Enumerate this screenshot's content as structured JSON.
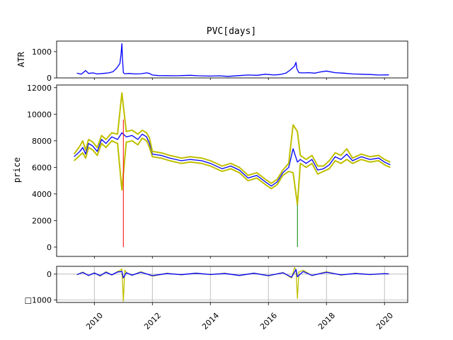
{
  "chart_data": [
    {
      "type": "line",
      "title": "PVC[days]",
      "ylabel": "ATR",
      "ylim": [
        0,
        1400
      ],
      "xlim": [
        2008.7,
        2020.8
      ],
      "yticks": [
        0,
        1000
      ],
      "xticks": [],
      "grid": false,
      "series": [
        {
          "color": "#0000ff",
          "x": [
            2009.4,
            2009.55,
            2009.7,
            2009.8,
            2009.95,
            2010.1,
            2010.3,
            2010.5,
            2010.65,
            2010.75,
            2010.82,
            2010.88,
            2010.92,
            2010.95,
            2010.97,
            2011.0,
            2011.05,
            2011.2,
            2011.4,
            2011.6,
            2011.8,
            2011.9,
            2012.0,
            2012.2,
            2012.5,
            2012.8,
            2013.0,
            2013.3,
            2013.6,
            2014.0,
            2014.3,
            2014.6,
            2015.0,
            2015.3,
            2015.6,
            2015.9,
            2016.2,
            2016.4,
            2016.6,
            2016.75,
            2016.85,
            2016.9,
            2016.95,
            2016.98,
            2017.05,
            2017.2,
            2017.4,
            2017.6,
            2017.8,
            2018.0,
            2018.3,
            2018.6,
            2018.9,
            2019.2,
            2019.5,
            2019.8,
            2020.15
          ],
          "y": [
            180,
            140,
            280,
            170,
            190,
            150,
            170,
            190,
            240,
            350,
            450,
            550,
            900,
            1300,
            700,
            200,
            160,
            170,
            150,
            160,
            190,
            170,
            110,
            90,
            85,
            80,
            90,
            100,
            80,
            70,
            80,
            60,
            90,
            110,
            100,
            140,
            110,
            130,
            180,
            300,
            400,
            450,
            590,
            350,
            200,
            190,
            200,
            180,
            230,
            260,
            200,
            180,
            150,
            140,
            130,
            110,
            115
          ]
        }
      ]
    },
    {
      "type": "line",
      "title": "",
      "ylabel": "price",
      "ylim": [
        -700,
        12200
      ],
      "xlim": [
        2008.7,
        2020.8
      ],
      "yticks": [
        0,
        2000,
        4000,
        6000,
        8000,
        10000,
        12000
      ],
      "xticks": [],
      "grid": false,
      "series": [
        {
          "name": "",
          "role": "middle",
          "color": "#0000ff",
          "x": [
            2009.3,
            2009.5,
            2009.6,
            2009.7,
            2009.8,
            2009.95,
            2010.1,
            2010.25,
            2010.4,
            2010.6,
            2010.8,
            2010.95,
            2011.1,
            2011.3,
            2011.5,
            2011.65,
            2011.8,
            2011.9,
            2012.0,
            2012.3,
            2012.6,
            2013.0,
            2013.3,
            2013.7,
            2014.0,
            2014.4,
            2014.7,
            2015.0,
            2015.3,
            2015.6,
            2015.9,
            2016.1,
            2016.3,
            2016.5,
            2016.7,
            2016.85,
            2017.0,
            2017.1,
            2017.3,
            2017.5,
            2017.7,
            2017.9,
            2018.1,
            2018.3,
            2018.5,
            2018.7,
            2018.9,
            2019.2,
            2019.5,
            2019.8,
            2020.0,
            2020.2
          ],
          "y": [
            6800,
            7200,
            7500,
            7000,
            7800,
            7600,
            7200,
            8100,
            7800,
            8300,
            8100,
            8600,
            8300,
            8400,
            8100,
            8500,
            8300,
            7800,
            7000,
            6900,
            6700,
            6500,
            6600,
            6500,
            6300,
            5900,
            6100,
            5800,
            5200,
            5400,
            4900,
            4600,
            4900,
            5600,
            6000,
            7400,
            6400,
            6600,
            6300,
            6600,
            5800,
            5900,
            6200,
            6800,
            6600,
            7000,
            6500,
            6800,
            6600,
            6700,
            6400,
            6200
          ]
        },
        {
          "name": "",
          "role": "upper",
          "color": "#bfbf00",
          "x": [
            2009.3,
            2009.5,
            2009.6,
            2009.7,
            2009.8,
            2009.95,
            2010.1,
            2010.25,
            2010.4,
            2010.6,
            2010.8,
            2010.95,
            2011.1,
            2011.3,
            2011.5,
            2011.65,
            2011.8,
            2011.9,
            2012.0,
            2012.3,
            2012.6,
            2013.0,
            2013.3,
            2013.7,
            2014.0,
            2014.4,
            2014.7,
            2015.0,
            2015.3,
            2015.6,
            2015.9,
            2016.1,
            2016.3,
            2016.5,
            2016.7,
            2016.85,
            2017.0,
            2017.1,
            2017.3,
            2017.5,
            2017.7,
            2017.9,
            2018.1,
            2018.3,
            2018.5,
            2018.7,
            2018.9,
            2019.2,
            2019.5,
            2019.8,
            2020.0,
            2020.2
          ],
          "y": [
            7000,
            7600,
            8000,
            7300,
            8100,
            7900,
            7500,
            8400,
            8100,
            8600,
            8500,
            11600,
            8700,
            8800,
            8500,
            8800,
            8600,
            8200,
            7200,
            7100,
            6900,
            6700,
            6800,
            6700,
            6500,
            6100,
            6300,
            6000,
            5400,
            5600,
            5100,
            4800,
            5100,
            5800,
            6300,
            9200,
            8700,
            6900,
            6600,
            6900,
            6100,
            6100,
            6500,
            7100,
            6900,
            7400,
            6700,
            7000,
            6800,
            6900,
            6600,
            6400
          ]
        },
        {
          "name": "",
          "role": "lower",
          "color": "#bfbf00",
          "x": [
            2009.3,
            2009.5,
            2009.6,
            2009.7,
            2009.8,
            2009.95,
            2010.1,
            2010.25,
            2010.4,
            2010.6,
            2010.8,
            2010.95,
            2011.1,
            2011.3,
            2011.5,
            2011.65,
            2011.8,
            2011.9,
            2012.0,
            2012.3,
            2012.6,
            2013.0,
            2013.3,
            2013.7,
            2014.0,
            2014.4,
            2014.7,
            2015.0,
            2015.3,
            2015.6,
            2015.9,
            2016.1,
            2016.3,
            2016.5,
            2016.7,
            2016.85,
            2017.0,
            2017.1,
            2017.3,
            2017.5,
            2017.7,
            2017.9,
            2018.1,
            2018.3,
            2018.5,
            2018.7,
            2018.9,
            2019.2,
            2019.5,
            2019.8,
            2020.0,
            2020.2
          ],
          "y": [
            6500,
            6900,
            7100,
            6700,
            7500,
            7300,
            6900,
            7800,
            7500,
            8000,
            7800,
            4300,
            7900,
            8000,
            7700,
            8200,
            8000,
            7500,
            6800,
            6700,
            6500,
            6300,
            6400,
            6300,
            6100,
            5700,
            5900,
            5600,
            5000,
            5200,
            4700,
            4400,
            4700,
            5400,
            5700,
            5600,
            3200,
            6300,
            6000,
            6300,
            5500,
            5700,
            5900,
            6500,
            6300,
            6600,
            6300,
            6600,
            6400,
            6500,
            6200,
            6000
          ]
        }
      ],
      "spikes": [
        {
          "x": 2011.0,
          "y_from": 9600,
          "y_to": 0,
          "color": "#ff0000"
        },
        {
          "x": 2017.0,
          "y_from": 3200,
          "y_to": 0,
          "color": "#008000"
        }
      ]
    },
    {
      "type": "line",
      "title": "",
      "ylabel": "",
      "ylim": [
        -1100,
        300
      ],
      "xlim": [
        2008.7,
        2020.8
      ],
      "yticks": [
        0,
        -1000
      ],
      "ytick_labels": [
        "0",
        "□1000"
      ],
      "xticks": [
        2010,
        2012,
        2014,
        2016,
        2018,
        2020
      ],
      "xtick_labels": [
        "2010",
        "2012",
        "2014",
        "2016",
        "2018",
        "2020"
      ],
      "grid": true,
      "series": [
        {
          "color": "#bfbf00",
          "x": [
            2009.4,
            2009.6,
            2009.8,
            2010.0,
            2010.2,
            2010.4,
            2010.6,
            2010.8,
            2010.9,
            2010.95,
            2011.0,
            2011.05,
            2011.1,
            2011.3,
            2011.6,
            2012.0,
            2012.5,
            2013.0,
            2013.5,
            2014.0,
            2014.5,
            2015.0,
            2015.5,
            2016.0,
            2016.5,
            2016.8,
            2016.9,
            2016.95,
            2017.0,
            2017.05,
            2017.2,
            2017.5,
            2018.0,
            2018.5,
            2019.0,
            2019.5,
            2020.0,
            2020.15
          ],
          "y": [
            -30,
            80,
            -60,
            50,
            -80,
            90,
            -40,
            100,
            150,
            200,
            -1050,
            150,
            60,
            -50,
            90,
            -80,
            30,
            -30,
            40,
            -20,
            30,
            -60,
            40,
            -70,
            60,
            -150,
            250,
            150,
            -950,
            80,
            150,
            -60,
            90,
            -40,
            30,
            -20,
            20,
            10
          ]
        },
        {
          "color": "#0000ff",
          "x": [
            2009.4,
            2009.6,
            2009.8,
            2010.0,
            2010.2,
            2010.4,
            2010.6,
            2010.8,
            2010.95,
            2011.0,
            2011.1,
            2011.3,
            2011.6,
            2012.0,
            2012.5,
            2013.0,
            2013.5,
            2014.0,
            2014.5,
            2015.0,
            2015.5,
            2016.0,
            2016.5,
            2016.8,
            2016.95,
            2017.0,
            2017.2,
            2017.5,
            2018.0,
            2018.5,
            2019.0,
            2019.5,
            2020.0,
            2020.15
          ],
          "y": [
            -20,
            60,
            -50,
            40,
            -60,
            70,
            -30,
            80,
            100,
            -150,
            50,
            -40,
            70,
            -60,
            20,
            -20,
            30,
            -15,
            20,
            -50,
            30,
            -60,
            50,
            -120,
            180,
            -100,
            100,
            -50,
            70,
            -30,
            20,
            -15,
            15,
            10
          ]
        }
      ]
    }
  ]
}
